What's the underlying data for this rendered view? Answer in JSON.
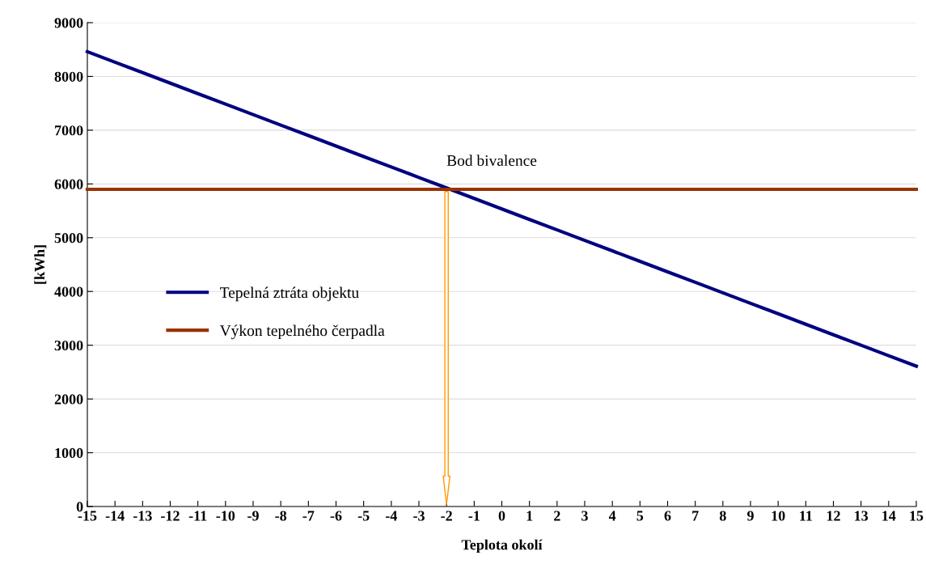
{
  "chart_data": {
    "type": "line",
    "xlabel": "Teplota okolí",
    "ylabel": "[kWh]",
    "categories": [
      "-15",
      "-14",
      "-13",
      "-12",
      "-11",
      "-10",
      "-9",
      "-8",
      "-7",
      "-6",
      "-5",
      "-4",
      "-3",
      "-2",
      "-1",
      "0",
      "1",
      "2",
      "3",
      "4",
      "5",
      "6",
      "7",
      "8",
      "9",
      "10",
      "11",
      "12",
      "13",
      "14",
      "15"
    ],
    "ylim": [
      0,
      9000
    ],
    "yticks": [
      0,
      1000,
      2000,
      3000,
      4000,
      5000,
      6000,
      7000,
      8000,
      9000
    ],
    "grid": "y",
    "legend": "left",
    "marker": "none",
    "line_style": "solid",
    "series": [
      {
        "name": "Tepelná ztráta objektu",
        "color": "#000080",
        "values": [
          8460,
          8265,
          8070,
          7875,
          7680,
          7485,
          7290,
          7095,
          6900,
          6705,
          6510,
          6315,
          6120,
          5925,
          5730,
          5535,
          5340,
          5145,
          4950,
          4755,
          4560,
          4365,
          4170,
          3975,
          3780,
          3585,
          3390,
          3195,
          3000,
          2805,
          2610
        ]
      },
      {
        "name": "Výkon tepelného čerpadla",
        "color": "#993300",
        "values": [
          5900,
          5900,
          5900,
          5900,
          5900,
          5900,
          5900,
          5900,
          5900,
          5900,
          5900,
          5900,
          5900,
          5900,
          5900,
          5900,
          5900,
          5900,
          5900,
          5900,
          5900,
          5900,
          5900,
          5900,
          5900,
          5900,
          5900,
          5900,
          5900,
          5900,
          5900
        ]
      }
    ],
    "annotations": [
      {
        "text": "Bod bivalence",
        "x": "-2",
        "y": 5900
      }
    ]
  }
}
